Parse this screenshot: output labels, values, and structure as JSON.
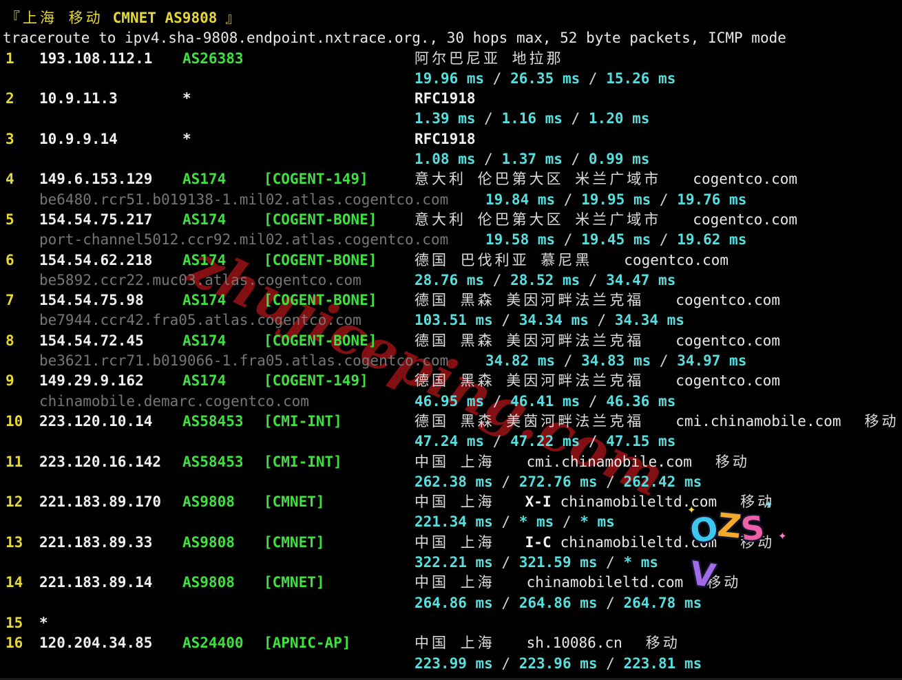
{
  "terminal": {
    "colors": {
      "background": "#000000",
      "yellow": "#e6d835",
      "green": "#3fe03f",
      "cyan": "#57dfdf",
      "white": "#e8e8e8",
      "grey": "#767676",
      "watermark_red": "#8c1113"
    },
    "header": {
      "bracket_open": "『",
      "title_location": "上海 移动",
      "title_asn": "CMNET AS9808",
      "bracket_close": "』"
    },
    "traceroute_line": "traceroute to ipv4.sha-9808.endpoint.nxtrace.org., 30 hops max, 52 byte packets, ICMP mode",
    "rtt_separator": "/",
    "rtt_unit": "ms",
    "hops": [
      {
        "num": "1",
        "ip": "193.108.112.1",
        "asn": "AS26383",
        "geo": "阿尔巴尼亚 地拉那",
        "rtt": [
          "19.96",
          "26.35",
          "15.26"
        ]
      },
      {
        "num": "2",
        "ip": "10.9.11.3",
        "asn": "*",
        "rfc": "RFC1918",
        "rtt": [
          "1.39",
          "1.16",
          "1.20"
        ]
      },
      {
        "num": "3",
        "ip": "10.9.9.14",
        "asn": "*",
        "rfc": "RFC1918",
        "rtt": [
          "1.08",
          "1.37",
          "0.99"
        ]
      },
      {
        "num": "4",
        "ip": "149.6.153.129",
        "asn": "AS174",
        "tag": "[COGENT-149]",
        "geo": "意大利 伦巴第大区 米兰广域市",
        "domain": "cogentco.com",
        "hostname": "be6480.rcr51.b019138-1.mil02.atlas.cogentco.com",
        "rtt": [
          "19.84",
          "19.95",
          "19.76"
        ]
      },
      {
        "num": "5",
        "ip": "154.54.75.217",
        "asn": "AS174",
        "tag": "[COGENT-BONE]",
        "geo": "意大利 伦巴第大区 米兰广域市",
        "domain": "cogentco.com",
        "hostname": "port-channel5012.ccr92.mil02.atlas.cogentco.com",
        "rtt": [
          "19.58",
          "19.45",
          "19.62"
        ]
      },
      {
        "num": "6",
        "ip": "154.54.62.218",
        "asn": "AS174",
        "tag": "[COGENT-BONE]",
        "geo": "德国 巴伐利亚 慕尼黑",
        "domain": "cogentco.com",
        "hostname": "be5892.ccr22.muc03.atlas.cogentco.com",
        "rtt": [
          "28.76",
          "28.52",
          "34.47"
        ]
      },
      {
        "num": "7",
        "ip": "154.54.75.98",
        "asn": "AS174",
        "tag": "[COGENT-BONE]",
        "geo": "德国 黑森 美因河畔法兰克福",
        "domain": "cogentco.com",
        "hostname": "be7944.ccr42.fra05.atlas.cogentco.com",
        "rtt": [
          "103.51",
          "34.34",
          "34.34"
        ]
      },
      {
        "num": "8",
        "ip": "154.54.72.45",
        "asn": "AS174",
        "tag": "[COGENT-BONE]",
        "geo": "德国 黑森 美因河畔法兰克福",
        "domain": "cogentco.com",
        "hostname": "be3621.rcr71.b019066-1.fra05.atlas.cogentco.com",
        "rtt": [
          "34.82",
          "34.83",
          "34.97"
        ]
      },
      {
        "num": "9",
        "ip": "149.29.9.162",
        "asn": "AS174",
        "tag": "[COGENT-149]",
        "geo": "德国 黑森 美因河畔法兰克福",
        "domain": "cogentco.com",
        "hostname": "chinamobile.demarc.cogentco.com",
        "rtt": [
          "46.95",
          "46.41",
          "46.36"
        ]
      },
      {
        "num": "10",
        "ip": "223.120.10.14",
        "asn": "AS58453",
        "tag": "[CMI-INT]",
        "geo": "德国 黑森 美茵河畔法兰克福",
        "domain": "cmi.chinamobile.com",
        "carrier": "移动",
        "rtt": [
          "47.24",
          "47.22",
          "47.15"
        ]
      },
      {
        "num": "11",
        "ip": "223.120.16.142",
        "asn": "AS58453",
        "tag": "[CMI-INT]",
        "geo": "中国 上海",
        "domain": "cmi.chinamobile.com",
        "carrier": "移动",
        "rtt": [
          "262.38",
          "272.76",
          "262.42"
        ]
      },
      {
        "num": "12",
        "ip": "221.183.89.170",
        "asn": "AS9808",
        "tag": "[CMNET]",
        "geo": "中国 上海",
        "prefix": "X-I",
        "domain": "chinamobileltd.com",
        "carrier": "移动",
        "rtt": [
          "221.34",
          "*",
          "*"
        ]
      },
      {
        "num": "13",
        "ip": "221.183.89.33",
        "asn": "AS9808",
        "tag": "[CMNET]",
        "geo": "中国 上海",
        "prefix": "I-C",
        "domain": "chinamobileltd.com",
        "carrier": "移动",
        "rtt": [
          "322.21",
          "321.59",
          "*"
        ]
      },
      {
        "num": "14",
        "ip": "221.183.89.14",
        "asn": "AS9808",
        "tag": "[CMNET]",
        "geo": "中国 上海",
        "domain": "chinamobileltd.com",
        "carrier": "移动",
        "rtt": [
          "264.86",
          "264.86",
          "264.78"
        ]
      },
      {
        "num": "15",
        "ip": "*"
      },
      {
        "num": "16",
        "ip": "120.204.34.85",
        "asn": "AS24400",
        "tag": "[APNIC-AP]",
        "geo": "中国 上海",
        "domain": "sh.10086.cn",
        "carrier": "移动",
        "rtt": [
          "223.99",
          "223.96",
          "223.81"
        ]
      }
    ]
  },
  "watermarks": {
    "diagonal_text": "zhujiceping.com",
    "sticker_letters": [
      "O",
      "Z",
      "S",
      "V"
    ],
    "sparkle_glyph": "✦"
  }
}
